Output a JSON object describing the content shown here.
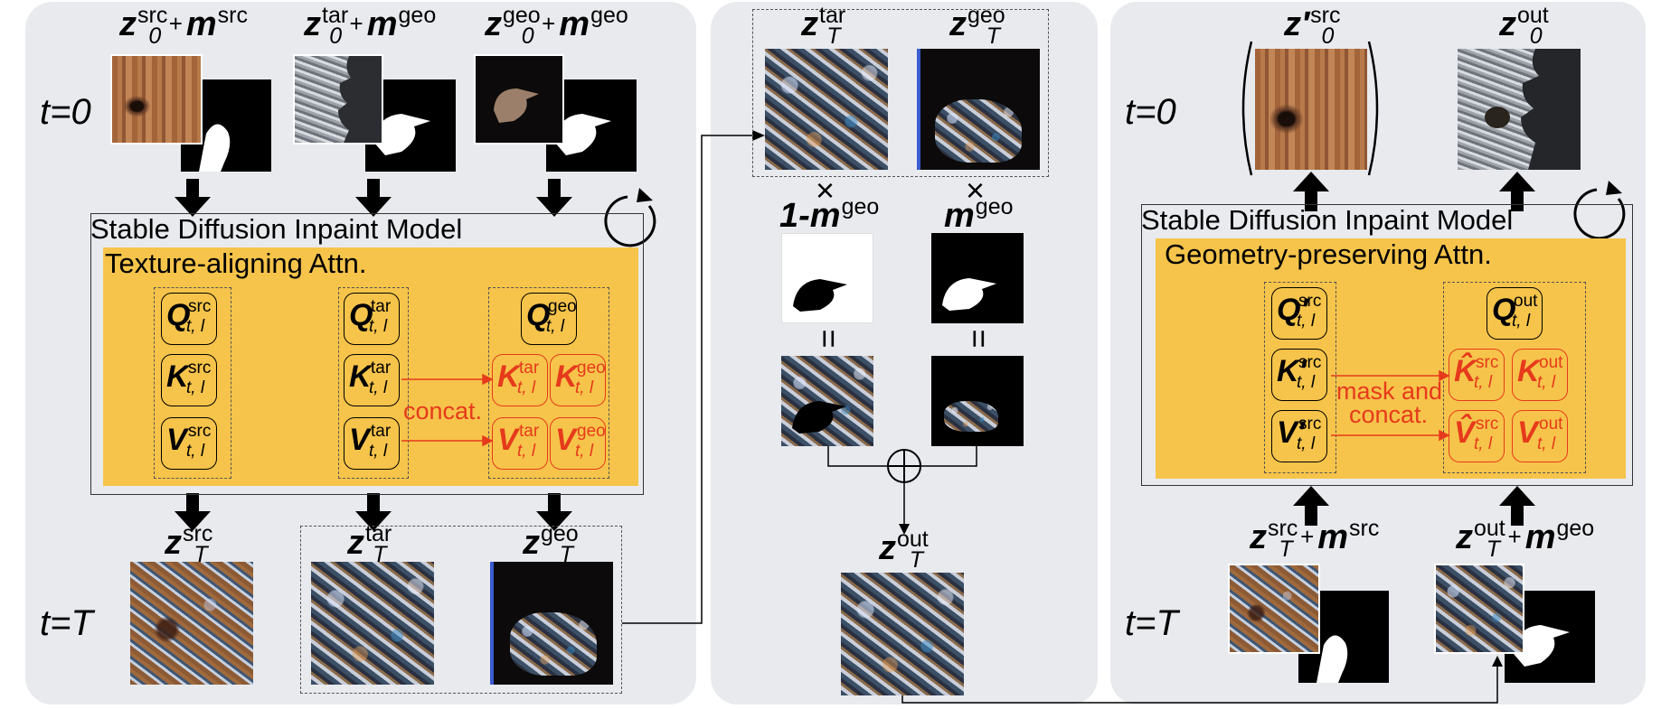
{
  "labels": {
    "t0": "t=0",
    "tT": "t=T",
    "z": "z",
    "m": "m",
    "zero": "0",
    "T": "T",
    "src": "src",
    "tar": "tar",
    "geo": "geo",
    "out": "out",
    "plus": "+",
    "times": "×",
    "equals": "=",
    "oneminus": "1-",
    "zprime": "z′"
  },
  "panel1": {
    "sdm_title": "Stable Diffusion Inpaint Model",
    "attn_title": "Texture-aligning Attn.",
    "concat": "concat."
  },
  "panel3": {
    "sdm_title": "Stable Diffusion Inpaint Model",
    "attn_title": "Geometry-preserving Attn.",
    "mask_concat_1": "mask and",
    "mask_concat_2": "concat."
  },
  "tokens": {
    "sub": "t, l",
    "Q": "Q",
    "K": "K",
    "V": "V",
    "Qp": "Q′",
    "Kp": "K′",
    "Vp": "V′",
    "Khat": "K̂",
    "Vhat": "V̂"
  },
  "colors": {
    "panel_bg": "#e8eaee",
    "attn_bg": "#f6c44a",
    "accent_red": "#e63a1c"
  }
}
